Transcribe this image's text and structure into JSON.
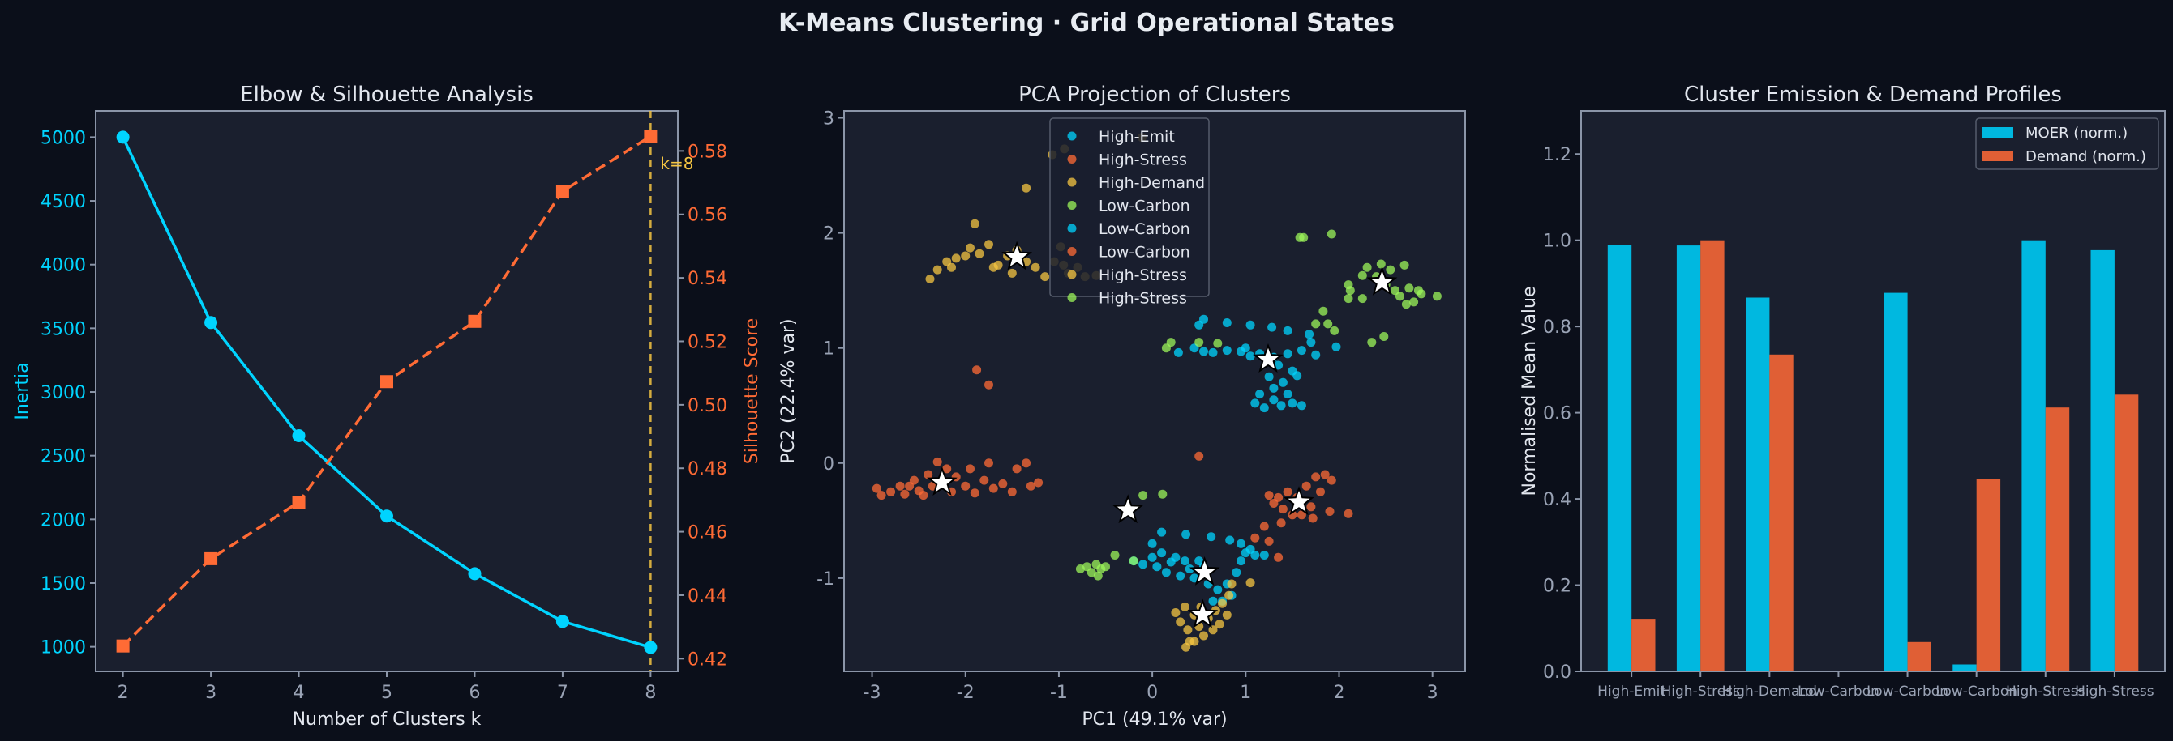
{
  "figure_title": "K-Means Clustering  ·  Grid Operational States",
  "colors": {
    "background": "#0b0f1a",
    "axes_face": "#1a1f2e",
    "spine": "#8b95a8",
    "cyan": "#00d4ff",
    "orange": "#ff6b35",
    "gold": "#f5c542",
    "green": "#9cf55a",
    "bar_cyan": "#00b8e0",
    "bar_orange": "#e05f35"
  },
  "chart_data": [
    {
      "type": "line",
      "title": "Elbow & Silhouette Analysis",
      "xlabel": "Number of Clusters k",
      "ylabel": "Inertia",
      "ylabel_right": "Silhouette Score",
      "x": [
        2,
        3,
        4,
        5,
        6,
        7,
        8
      ],
      "xlim": [
        1.69,
        8.31
      ],
      "ylim": [
        807,
        5206
      ],
      "ylim_right": [
        0.416,
        0.5926
      ],
      "xticks": [
        2,
        3,
        4,
        5,
        6,
        7,
        8
      ],
      "yticks": [
        1000,
        1500,
        2000,
        2500,
        3000,
        3500,
        4000,
        4500,
        5000
      ],
      "yticks_right": [
        "0.42",
        "0.44",
        "0.46",
        "0.48",
        "0.50",
        "0.52",
        "0.54",
        "0.56",
        "0.58"
      ],
      "series": [
        {
          "axis": "left",
          "values": [
            5000,
            3545,
            2657,
            2026,
            1574,
            1199,
            995
          ],
          "style": "solid",
          "marker": "circle",
          "color": "#00d4ff"
        },
        {
          "axis": "right",
          "values": [
            0.424,
            0.4515,
            0.4693,
            0.5073,
            0.5263,
            0.5673,
            0.5846
          ],
          "style": "dashed",
          "marker": "square",
          "color": "#ff6b35"
        }
      ],
      "annotation": {
        "x": 8,
        "label": "k=8",
        "color": "#f5c542"
      },
      "grid": false
    },
    {
      "type": "scatter",
      "title": "PCA Projection of Clusters",
      "xlabel": "PC1 (49.1% var)",
      "ylabel": "PC2 (22.4% var)",
      "xlim": [
        -3.3,
        3.35
      ],
      "ylim": [
        -1.81,
        3.06
      ],
      "xticks": [
        -3,
        -2,
        -1,
        0,
        1,
        2,
        3
      ],
      "yticks": [
        -1,
        0,
        1,
        2,
        3
      ],
      "legend": "top-center",
      "grid": false,
      "series": [
        {
          "name": "High-Emit",
          "color": "#00d4ff",
          "points": [
            [
              0.5,
              1.2
            ],
            [
              0.55,
              1.25
            ],
            [
              0.8,
              1.22
            ],
            [
              1.05,
              1.2
            ],
            [
              1.28,
              1.18
            ],
            [
              1.45,
              1.15
            ],
            [
              1.68,
              1.12
            ],
            [
              0.45,
              1.0
            ],
            [
              0.55,
              0.97
            ],
            [
              0.65,
              0.96
            ],
            [
              0.8,
              0.98
            ],
            [
              0.95,
              0.97
            ],
            [
              1.05,
              0.93
            ],
            [
              1.15,
              0.95
            ],
            [
              1.3,
              0.92
            ],
            [
              1.45,
              0.95
            ],
            [
              1.6,
              0.98
            ],
            [
              1.75,
              0.94
            ],
            [
              1.7,
              1.05
            ],
            [
              1.35,
              0.85
            ],
            [
              1.5,
              0.8
            ],
            [
              1.4,
              0.7
            ],
            [
              1.3,
              0.65
            ],
            [
              1.45,
              0.6
            ],
            [
              1.3,
              0.55
            ],
            [
              1.5,
              0.52
            ],
            [
              1.1,
              0.52
            ],
            [
              1.2,
              0.48
            ],
            [
              1.6,
              0.5
            ],
            [
              1.25,
              0.75
            ],
            [
              1.55,
              0.76
            ],
            [
              0.28,
              0.96
            ],
            [
              1.97,
              1.01
            ],
            [
              1.15,
              0.6
            ],
            [
              1.0,
              1.0
            ],
            [
              1.38,
              0.5
            ]
          ]
        },
        {
          "name": "High-Stress",
          "color": "#ff6b35",
          "points": [
            [
              -2.95,
              -0.22
            ],
            [
              -2.9,
              -0.28
            ],
            [
              -2.8,
              -0.25
            ],
            [
              -2.7,
              -0.2
            ],
            [
              -2.65,
              -0.27
            ],
            [
              -2.55,
              -0.15
            ],
            [
              -2.5,
              -0.24
            ],
            [
              -2.4,
              -0.1
            ],
            [
              -2.35,
              -0.2
            ],
            [
              -2.3,
              0.01
            ],
            [
              -2.2,
              -0.05
            ],
            [
              -2.15,
              -0.25
            ],
            [
              -2.1,
              -0.12
            ],
            [
              -2.0,
              -0.2
            ],
            [
              -1.95,
              -0.05
            ],
            [
              -1.9,
              -0.26
            ],
            [
              -1.8,
              -0.15
            ],
            [
              -1.75,
              0.0
            ],
            [
              -1.7,
              -0.22
            ],
            [
              -1.6,
              -0.18
            ],
            [
              -1.5,
              -0.25
            ],
            [
              -1.45,
              -0.05
            ],
            [
              -1.35,
              0.0
            ],
            [
              -1.3,
              -0.2
            ],
            [
              -1.22,
              -0.17
            ],
            [
              -2.6,
              -0.2
            ],
            [
              -2.45,
              -0.28
            ],
            [
              -1.88,
              0.81
            ],
            [
              -1.75,
              0.68
            ]
          ]
        },
        {
          "name": "High-Demand",
          "color": "#f5c542",
          "points": [
            [
              -2.38,
              1.6
            ],
            [
              -2.3,
              1.68
            ],
            [
              -2.2,
              1.75
            ],
            [
              -2.1,
              1.78
            ],
            [
              -2.0,
              1.8
            ],
            [
              -1.95,
              1.87
            ],
            [
              -1.85,
              1.82
            ],
            [
              -1.75,
              1.9
            ],
            [
              -1.65,
              1.72
            ],
            [
              -1.55,
              1.8
            ],
            [
              -1.45,
              1.85
            ],
            [
              -1.35,
              1.75
            ],
            [
              -1.25,
              1.7
            ],
            [
              -1.15,
              1.62
            ],
            [
              -1.05,
              1.75
            ],
            [
              -0.98,
              1.88
            ],
            [
              -0.95,
              1.72
            ],
            [
              -0.9,
              1.65
            ],
            [
              -0.8,
              1.7
            ],
            [
              -0.72,
              1.62
            ],
            [
              -0.6,
              1.63
            ],
            [
              -1.5,
              1.65
            ],
            [
              -1.7,
              1.7
            ],
            [
              -2.15,
              1.7
            ],
            [
              -1.9,
              2.08
            ],
            [
              -1.35,
              2.39
            ],
            [
              -1.07,
              2.68
            ],
            [
              -0.94,
              2.73
            ],
            [
              -0.11,
              2.83
            ]
          ]
        },
        {
          "name": "Low-Carbon",
          "color": "#9cf55a",
          "points": [
            [
              2.1,
              1.55
            ],
            [
              2.12,
              1.5
            ],
            [
              2.1,
              1.43
            ],
            [
              2.25,
              1.63
            ],
            [
              2.3,
              1.7
            ],
            [
              2.4,
              1.62
            ],
            [
              2.45,
              1.73
            ],
            [
              2.5,
              1.55
            ],
            [
              2.55,
              1.68
            ],
            [
              2.6,
              1.5
            ],
            [
              2.65,
              1.45
            ],
            [
              2.7,
              1.72
            ],
            [
              2.72,
              1.38
            ],
            [
              2.75,
              1.52
            ],
            [
              2.85,
              1.5
            ],
            [
              2.8,
              1.4
            ],
            [
              2.88,
              1.47
            ],
            [
              3.05,
              1.45
            ],
            [
              2.25,
              1.43
            ],
            [
              1.58,
              1.96
            ],
            [
              1.62,
              1.96
            ],
            [
              1.92,
              1.99
            ],
            [
              1.83,
              1.32
            ],
            [
              1.75,
              1.21
            ],
            [
              1.88,
              1.21
            ],
            [
              1.95,
              1.15
            ],
            [
              2.35,
              1.05
            ],
            [
              2.48,
              1.1
            ]
          ]
        },
        {
          "name": "Low-Carbon",
          "color": "#00d4ff",
          "points": [
            [
              -0.2,
              -0.85
            ],
            [
              -0.1,
              -0.88
            ],
            [
              0.0,
              -0.82
            ],
            [
              0.05,
              -0.9
            ],
            [
              0.1,
              -0.78
            ],
            [
              0.15,
              -0.95
            ],
            [
              0.2,
              -0.86
            ],
            [
              0.25,
              -0.82
            ],
            [
              0.3,
              -0.98
            ],
            [
              0.35,
              -0.85
            ],
            [
              0.4,
              -0.92
            ],
            [
              0.45,
              -1.0
            ],
            [
              0.5,
              -0.85
            ],
            [
              0.55,
              -0.9
            ],
            [
              0.6,
              -1.05
            ],
            [
              0.7,
              -1.1
            ],
            [
              0.75,
              -1.2
            ],
            [
              0.8,
              -1.05
            ],
            [
              0.85,
              -1.15
            ],
            [
              0.9,
              -0.95
            ],
            [
              0.95,
              -0.85
            ],
            [
              1.0,
              -0.78
            ],
            [
              1.05,
              -0.75
            ],
            [
              1.1,
              -0.8
            ],
            [
              0.65,
              -1.2
            ],
            [
              0.0,
              -0.7
            ],
            [
              0.1,
              -0.6
            ],
            [
              0.36,
              -0.62
            ],
            [
              0.63,
              -0.64
            ],
            [
              0.83,
              -0.67
            ],
            [
              0.95,
              -0.7
            ],
            [
              1.2,
              -0.8
            ]
          ]
        },
        {
          "name": "Low-Carbon",
          "color": "#ff6b35",
          "points": [
            [
              1.25,
              -0.28
            ],
            [
              1.3,
              -0.35
            ],
            [
              1.35,
              -0.3
            ],
            [
              1.4,
              -0.4
            ],
            [
              1.45,
              -0.25
            ],
            [
              1.5,
              -0.45
            ],
            [
              1.55,
              -0.3
            ],
            [
              1.6,
              -0.45
            ],
            [
              1.65,
              -0.2
            ],
            [
              1.7,
              -0.38
            ],
            [
              1.72,
              -0.48
            ],
            [
              1.75,
              -0.12
            ],
            [
              1.8,
              -0.25
            ],
            [
              1.85,
              -0.1
            ],
            [
              1.9,
              -0.42
            ],
            [
              1.92,
              -0.15
            ],
            [
              2.1,
              -0.44
            ],
            [
              1.38,
              -0.52
            ],
            [
              1.2,
              -0.55
            ],
            [
              1.1,
              -0.65
            ],
            [
              1.25,
              -0.68
            ],
            [
              1.35,
              -0.82
            ],
            [
              0.5,
              0.06
            ]
          ]
        },
        {
          "name": "High-Stress",
          "color": "#f5c542",
          "points": [
            [
              0.25,
              -1.3
            ],
            [
              0.3,
              -1.38
            ],
            [
              0.35,
              -1.25
            ],
            [
              0.38,
              -1.45
            ],
            [
              0.4,
              -1.55
            ],
            [
              0.45,
              -1.32
            ],
            [
              0.5,
              -1.42
            ],
            [
              0.52,
              -1.25
            ],
            [
              0.55,
              -1.5
            ],
            [
              0.6,
              -1.35
            ],
            [
              0.65,
              -1.45
            ],
            [
              0.68,
              -1.28
            ],
            [
              0.72,
              -1.4
            ],
            [
              0.75,
              -1.22
            ],
            [
              0.8,
              -1.32
            ],
            [
              0.82,
              -1.15
            ],
            [
              0.36,
              -1.6
            ],
            [
              0.45,
              -1.55
            ],
            [
              0.85,
              -1.05
            ],
            [
              1.05,
              -1.04
            ]
          ]
        },
        {
          "name": "High-Stress",
          "color": "#9cf55a",
          "points": [
            [
              -0.77,
              -0.92
            ],
            [
              -0.7,
              -0.9
            ],
            [
              -0.65,
              -0.95
            ],
            [
              -0.6,
              -0.88
            ],
            [
              -0.58,
              -0.98
            ],
            [
              -0.55,
              -0.92
            ],
            [
              -0.5,
              -0.9
            ],
            [
              -0.4,
              -0.8
            ],
            [
              -0.1,
              -0.28
            ],
            [
              0.11,
              -0.27
            ],
            [
              -0.2,
              -0.85
            ],
            [
              0.15,
              1.0
            ],
            [
              0.2,
              1.05
            ],
            [
              0.5,
              1.05
            ],
            [
              0.7,
              1.04
            ]
          ]
        }
      ],
      "centroids": [
        [
          -1.45,
          1.79
        ],
        [
          1.24,
          0.9
        ],
        [
          2.46,
          1.57
        ],
        [
          -2.25,
          -0.17
        ],
        [
          -0.26,
          -0.41
        ],
        [
          1.57,
          -0.34
        ],
        [
          0.56,
          -0.95
        ],
        [
          0.54,
          -1.32
        ]
      ]
    },
    {
      "type": "bar",
      "title": "Cluster Emission & Demand Profiles",
      "xlabel": "",
      "ylabel": "Normalised Mean Value",
      "categories": [
        "High-Emit",
        "High-Stress",
        "High-Demand",
        "Low-Carbon",
        "Low-Carbon",
        "Low-Carbon",
        "High-Stress",
        "High-Stress"
      ],
      "ylim": [
        0,
        1.3
      ],
      "yticks": [
        "0.0",
        "0.2",
        "0.4",
        "0.6",
        "0.8",
        "1.0",
        "1.2"
      ],
      "legend": "top-right",
      "grid": false,
      "series": [
        {
          "name": "MOER (norm.)",
          "color": "#00b8e0",
          "values": [
            0.99,
            0.988,
            0.867,
            0.0,
            0.878,
            0.016,
            1.0,
            0.977
          ]
        },
        {
          "name": "Demand (norm.)",
          "color": "#e05f35",
          "values": [
            0.122,
            1.0,
            0.735,
            0.0,
            0.068,
            0.446,
            0.612,
            0.642
          ]
        }
      ]
    }
  ]
}
